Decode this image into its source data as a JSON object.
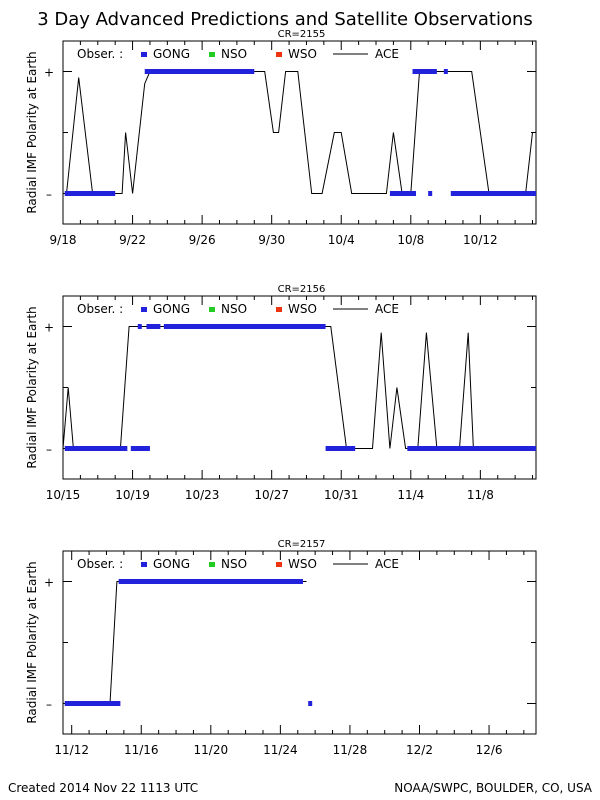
{
  "title": "3 Day Advanced Predictions and Satellite Observations",
  "footer": {
    "left": "Created 2014 Nov 22 1113 UTC",
    "right": "NOAA/SWPC, BOULDER, CO, USA"
  },
  "legend": {
    "prefix": "Obser. :",
    "items": [
      {
        "label": "GONG",
        "color": "#2222dd"
      },
      {
        "label": "NSO",
        "color": "#22cc22"
      },
      {
        "label": "WSO",
        "color": "#ee3311"
      },
      {
        "label": "ACE",
        "color": "#000000"
      }
    ]
  },
  "ylabel": "Radial IMF Polarity at Earth",
  "y_tick_labels": [
    "+",
    "–"
  ],
  "chart_data": [
    {
      "type": "line",
      "title": "CR=2155",
      "ylim": [
        -1.5,
        1.5
      ],
      "xlim": [
        0,
        27.2
      ],
      "xticks": [
        {
          "v": 0,
          "label": "9/18"
        },
        {
          "v": 4,
          "label": "9/22"
        },
        {
          "v": 8,
          "label": "9/26"
        },
        {
          "v": 12,
          "label": "9/30"
        },
        {
          "v": 16,
          "label": "10/4"
        },
        {
          "v": 20,
          "label": "10/8"
        },
        {
          "v": 24,
          "label": "10/12"
        }
      ],
      "ace": [
        [
          0.2,
          -1
        ],
        [
          0.9,
          0.9
        ],
        [
          1.7,
          -1
        ],
        [
          3.4,
          -1
        ],
        [
          3.6,
          0
        ],
        [
          4.0,
          -1
        ],
        [
          4.7,
          0.8
        ],
        [
          5.0,
          1
        ],
        [
          11.6,
          1
        ],
        [
          12.1,
          0
        ],
        [
          12.4,
          0
        ],
        [
          12.8,
          1
        ],
        [
          13.5,
          1
        ],
        [
          14.3,
          -1
        ],
        [
          14.9,
          -1
        ],
        [
          15.6,
          0
        ],
        [
          16.0,
          0
        ],
        [
          16.6,
          -1
        ],
        [
          18.6,
          -1
        ],
        [
          19.0,
          0
        ],
        [
          19.5,
          -1
        ],
        [
          20.0,
          -1
        ],
        [
          20.5,
          1
        ],
        [
          23.5,
          1
        ],
        [
          24.5,
          -1
        ],
        [
          26.6,
          -1
        ],
        [
          27.0,
          0
        ],
        [
          27.2,
          0
        ]
      ],
      "gong": [
        [
          0.1,
          3.0,
          -1
        ],
        [
          4.7,
          11.0,
          1
        ],
        [
          18.8,
          20.3,
          -1
        ],
        [
          20.1,
          21.5,
          1
        ],
        [
          21.9,
          22.1,
          1
        ],
        [
          21.0,
          21.2,
          -1
        ],
        [
          22.3,
          27.2,
          -1
        ]
      ]
    },
    {
      "type": "line",
      "title": "CR=2156",
      "ylim": [
        -1.5,
        1.5
      ],
      "xlim": [
        0,
        27.2
      ],
      "xticks": [
        {
          "v": 0,
          "label": "10/15"
        },
        {
          "v": 4,
          "label": "10/19"
        },
        {
          "v": 8,
          "label": "10/23"
        },
        {
          "v": 12,
          "label": "10/27"
        },
        {
          "v": 16,
          "label": "10/31"
        },
        {
          "v": 20,
          "label": "11/4"
        },
        {
          "v": 24,
          "label": "11/8"
        }
      ],
      "ace": [
        [
          0.0,
          -1
        ],
        [
          0.3,
          0
        ],
        [
          0.6,
          -1
        ],
        [
          3.3,
          -1
        ],
        [
          3.8,
          1
        ],
        [
          15.4,
          1
        ],
        [
          16.3,
          -1
        ],
        [
          17.8,
          -1
        ],
        [
          18.3,
          0.9
        ],
        [
          18.8,
          -1
        ],
        [
          19.2,
          0
        ],
        [
          19.7,
          -1
        ],
        [
          20.4,
          -1
        ],
        [
          20.9,
          0.9
        ],
        [
          21.5,
          -1
        ],
        [
          22.8,
          -1
        ],
        [
          23.3,
          0.9
        ],
        [
          23.6,
          -1
        ],
        [
          27.2,
          -1
        ]
      ],
      "gong": [
        [
          0.1,
          3.7,
          -1
        ],
        [
          4.3,
          4.5,
          1
        ],
        [
          4.8,
          5.6,
          1
        ],
        [
          5.8,
          15.1,
          1
        ],
        [
          3.9,
          5.0,
          -1
        ],
        [
          15.1,
          16.8,
          -1
        ],
        [
          19.8,
          27.2,
          -1
        ]
      ]
    },
    {
      "type": "line",
      "title": "CR=2157",
      "ylim": [
        -1.5,
        1.5
      ],
      "xlim": [
        0,
        27.2
      ],
      "xticks": [
        {
          "v": 0.5,
          "label": "11/12"
        },
        {
          "v": 4.5,
          "label": "11/16"
        },
        {
          "v": 8.5,
          "label": "11/20"
        },
        {
          "v": 12.5,
          "label": "11/24"
        },
        {
          "v": 16.5,
          "label": "11/28"
        },
        {
          "v": 20.5,
          "label": "12/2"
        },
        {
          "v": 24.5,
          "label": "12/6"
        }
      ],
      "ace": [
        [
          2.7,
          -1
        ],
        [
          3.1,
          1
        ],
        [
          14.0,
          1
        ]
      ],
      "gong": [
        [
          0.1,
          3.3,
          -1
        ],
        [
          3.2,
          13.8,
          1
        ],
        [
          14.1,
          14.3,
          -1
        ]
      ]
    }
  ]
}
